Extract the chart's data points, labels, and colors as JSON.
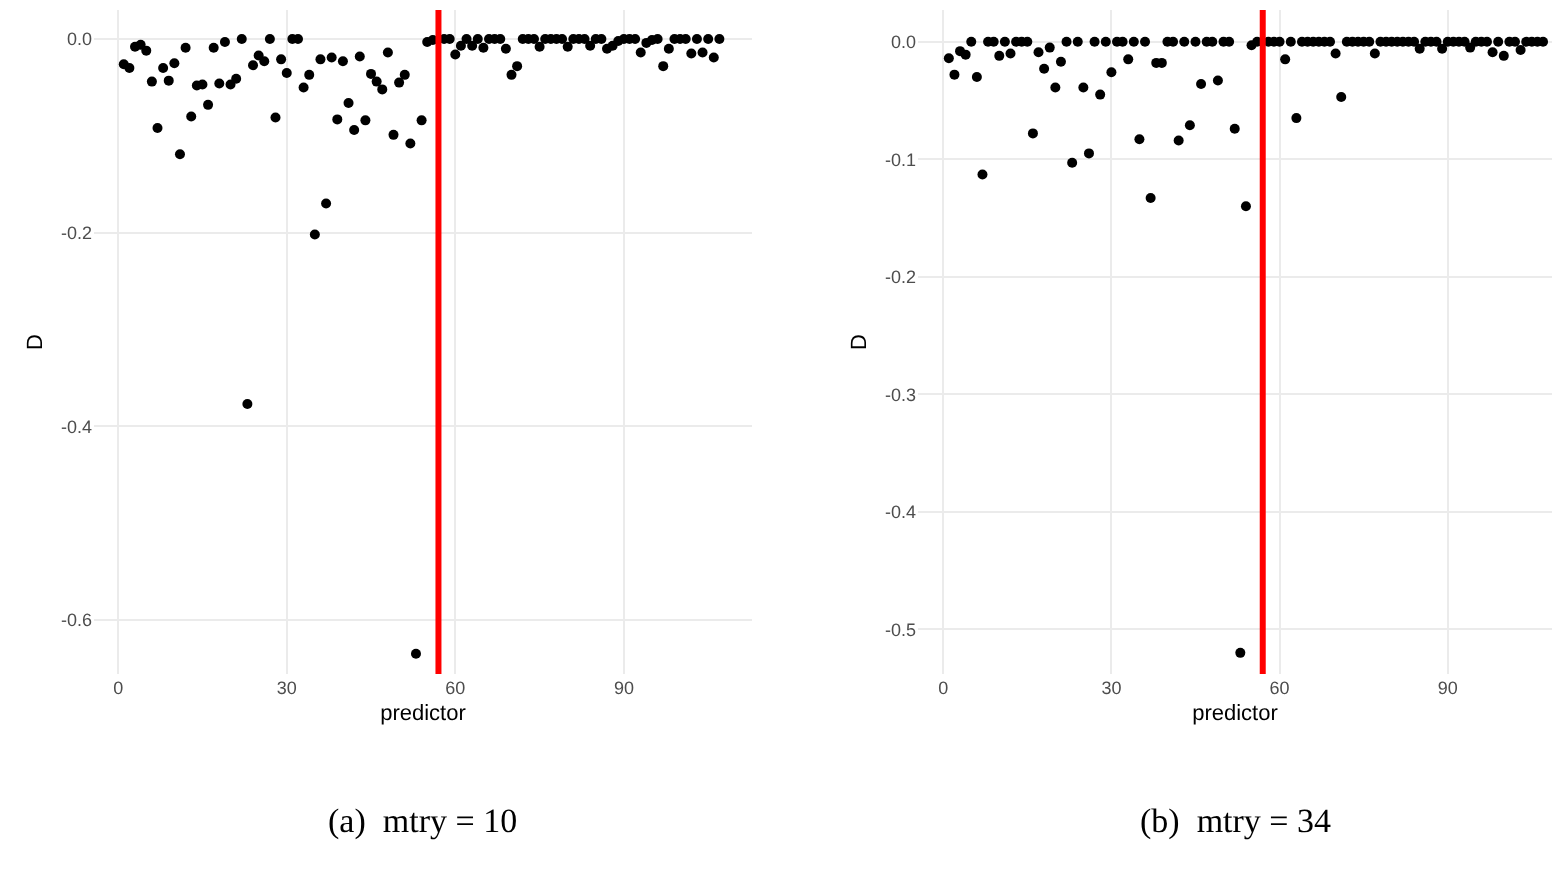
{
  "chart_data": [
    {
      "type": "scatter",
      "xlabel": "predictor",
      "ylabel": "D",
      "annotations": [
        "(a)  mtry = 10"
      ],
      "grid": true,
      "marker": "circle",
      "xlim": [
        -4.3,
        112.8
      ],
      "ylim": [
        -0.656,
        0.03
      ],
      "xticks": [
        0,
        30,
        60,
        90
      ],
      "yticks": [
        {
          "value": 0,
          "label": "0.0"
        },
        -0.2,
        -0.4,
        -0.6
      ],
      "ref_lines": [
        {
          "axis": "x",
          "value": 57,
          "color": "#ff0000"
        }
      ],
      "x": [
        1,
        2,
        3,
        4,
        5,
        6,
        7,
        8,
        9,
        10,
        11,
        12,
        13,
        14,
        15,
        16,
        17,
        18,
        19,
        20,
        21,
        22,
        23,
        24,
        25,
        26,
        27,
        28,
        29,
        30,
        31,
        32,
        33,
        34,
        35,
        36,
        37,
        38,
        39,
        40,
        41,
        42,
        43,
        44,
        45,
        46,
        47,
        48,
        49,
        50,
        51,
        52,
        53,
        54,
        55,
        56,
        57,
        58,
        59,
        60,
        61,
        62,
        63,
        64,
        65,
        66,
        67,
        68,
        69,
        70,
        71,
        72,
        73,
        74,
        75,
        76,
        77,
        78,
        79,
        80,
        81,
        82,
        83,
        84,
        85,
        86,
        87,
        88,
        89,
        90,
        91,
        92,
        93,
        94,
        95,
        96,
        97,
        98,
        99,
        100,
        101,
        102,
        103,
        104,
        105,
        106,
        107
      ],
      "series": [
        {
          "color": "#000000",
          "values": [
            -0.026,
            -0.03,
            -0.008,
            -0.006,
            -0.012,
            -0.044,
            -0.092,
            -0.03,
            -0.043,
            -0.025,
            -0.119,
            -0.009,
            -0.08,
            -0.048,
            -0.047,
            -0.068,
            -0.009,
            -0.046,
            -0.003,
            -0.047,
            -0.041,
            0,
            -0.377,
            -0.027,
            -0.017,
            -0.023,
            0,
            -0.081,
            -0.021,
            -0.035,
            0,
            0,
            -0.05,
            -0.037,
            -0.202,
            -0.021,
            -0.17,
            -0.019,
            -0.083,
            -0.023,
            -0.066,
            -0.094,
            -0.018,
            -0.084,
            -0.036,
            -0.044,
            -0.052,
            -0.014,
            -0.099,
            -0.045,
            -0.037,
            -0.108,
            -0.635,
            -0.084,
            -0.003,
            -0.001,
            null,
            0,
            0,
            -0.016,
            -0.007,
            0,
            -0.007,
            0,
            -0.009,
            0,
            0,
            0,
            -0.01,
            -0.037,
            -0.028,
            0,
            0,
            0,
            -0.008,
            0,
            0,
            0,
            0,
            -0.008,
            0,
            0,
            0,
            -0.007,
            0,
            0,
            -0.01,
            -0.007,
            -0.002,
            0,
            0,
            0,
            -0.014,
            -0.004,
            -0.001,
            0,
            -0.028,
            -0.01,
            0,
            0,
            0,
            -0.015,
            0,
            -0.014,
            0,
            -0.019,
            0
          ]
        }
      ]
    },
    {
      "type": "scatter",
      "xlabel": "predictor",
      "ylabel": "D",
      "annotations": [
        "(b)  mtry = 34"
      ],
      "grid": true,
      "marker": "circle",
      "xlim": [
        -4.5,
        108.6
      ],
      "ylim": [
        -0.538,
        0.027
      ],
      "xticks": [
        0,
        30,
        60,
        90
      ],
      "yticks": [
        {
          "value": 0,
          "label": "0.0"
        },
        -0.1,
        -0.2,
        -0.3,
        -0.4,
        -0.5
      ],
      "ref_lines": [
        {
          "axis": "x",
          "value": 57,
          "color": "#ff0000"
        }
      ],
      "x": [
        1,
        2,
        3,
        4,
        5,
        6,
        7,
        8,
        9,
        10,
        11,
        12,
        13,
        14,
        15,
        16,
        17,
        18,
        19,
        20,
        21,
        22,
        23,
        24,
        25,
        26,
        27,
        28,
        29,
        30,
        31,
        32,
        33,
        34,
        35,
        36,
        37,
        38,
        39,
        40,
        41,
        42,
        43,
        44,
        45,
        46,
        47,
        48,
        49,
        50,
        51,
        52,
        53,
        54,
        55,
        56,
        57,
        58,
        59,
        60,
        61,
        62,
        63,
        64,
        65,
        66,
        67,
        68,
        69,
        70,
        71,
        72,
        73,
        74,
        75,
        76,
        77,
        78,
        79,
        80,
        81,
        82,
        83,
        84,
        85,
        86,
        87,
        88,
        89,
        90,
        91,
        92,
        93,
        94,
        95,
        96,
        97,
        98,
        99,
        100,
        101,
        102,
        103,
        104,
        105,
        106,
        107
      ],
      "series": [
        {
          "color": "#000000",
          "values": [
            -0.014,
            -0.028,
            -0.008,
            -0.011,
            0,
            -0.03,
            -0.113,
            0,
            0,
            -0.012,
            0,
            -0.01,
            0,
            0,
            0,
            -0.078,
            -0.009,
            -0.023,
            -0.005,
            -0.039,
            -0.017,
            0,
            -0.103,
            0,
            -0.039,
            -0.095,
            0,
            -0.045,
            0,
            -0.026,
            0,
            0,
            -0.015,
            0,
            -0.083,
            0,
            -0.133,
            -0.018,
            -0.018,
            0,
            0,
            -0.084,
            0,
            -0.071,
            0,
            -0.036,
            0,
            0,
            -0.033,
            0,
            0,
            -0.074,
            -0.52,
            -0.14,
            -0.003,
            0,
            null,
            0,
            0,
            0,
            -0.015,
            0,
            -0.065,
            0,
            0,
            0,
            0,
            0,
            0,
            -0.01,
            -0.047,
            0,
            0,
            0,
            0,
            0,
            -0.01,
            0,
            0,
            0,
            0,
            0,
            0,
            0,
            -0.006,
            0,
            0,
            0,
            -0.006,
            0,
            0,
            0,
            0,
            -0.005,
            0,
            0,
            0,
            -0.009,
            0,
            -0.012,
            0,
            0,
            -0.007,
            0,
            0,
            0,
            0
          ]
        }
      ]
    }
  ]
}
